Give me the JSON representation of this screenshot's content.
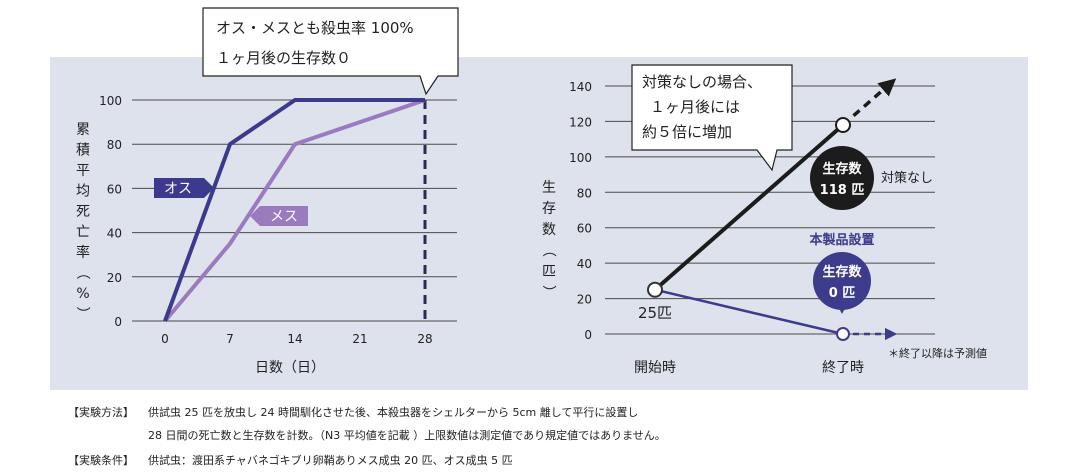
{
  "colors": {
    "panel_bg": "#dde2ec",
    "male": "#3b3a8e",
    "female": "#9a7bc0",
    "no_treatment": "#1c1c1c",
    "product": "#3d3b8c",
    "grid": "#4a4a4a"
  },
  "callouts": {
    "left": {
      "line1": "オス・メスとも殺虫率 100%",
      "line2": "１ヶ月後の生存数０"
    },
    "right": {
      "line1": "対策なしの場合、",
      "line2": "１ヶ月後には",
      "line3": "約５倍に増加"
    }
  },
  "chart_data": [
    {
      "type": "line",
      "xlabel": "日数（日）",
      "ylabel": "累積平均死亡率（%）",
      "x": [
        0,
        7,
        14,
        28
      ],
      "xlim": [
        0,
        28
      ],
      "ylim": [
        0,
        100
      ],
      "xticks": [
        "0",
        "7",
        "14",
        "21",
        "28"
      ],
      "yticks": [
        "0",
        "20",
        "40",
        "60",
        "80",
        "100"
      ],
      "series": [
        {
          "name": "オス",
          "values": [
            0,
            80,
            100,
            100
          ],
          "color": "#3b3a8e"
        },
        {
          "name": "メス",
          "values": [
            0,
            35,
            80,
            100
          ],
          "color": "#9a7bc0"
        }
      ],
      "end_marker_x": 28,
      "grid": true
    },
    {
      "type": "line",
      "ylabel": "生存数（匹）",
      "categories": [
        "開始時",
        "終了時"
      ],
      "ylim": [
        0,
        140
      ],
      "yticks": [
        "0",
        "20",
        "40",
        "60",
        "80",
        "100",
        "120",
        "140"
      ],
      "series": [
        {
          "name": "対策なし",
          "values": [
            25,
            118
          ],
          "color": "#1c1c1c"
        },
        {
          "name": "本製品設置",
          "values": [
            25,
            0
          ],
          "color": "#3d3b8c"
        }
      ],
      "start_label": "25匹",
      "badges": [
        {
          "line1": "生存数",
          "line2": "118 匹",
          "side_label": "対策なし"
        },
        {
          "line1": "生存数",
          "line2": "0 匹",
          "top_label": "本製品設置"
        }
      ],
      "footnote": "＊終了以降は予測値",
      "grid": true
    }
  ],
  "notes": [
    {
      "label": "【実験方法】",
      "text": "供試虫 25 匹を放虫し 24 時間馴化させた後、本殺虫器をシェルターから 5cm 離して平行に設置し"
    },
    {
      "label": "",
      "text": "28 日間の死亡数と生存数を計数。（N3 平均値を記載 ）上限数値は測定値であり規定値ではありません。"
    },
    {
      "label": "【実験条件】",
      "text": "供試虫：渡田系チャバネゴキブリ卵鞘ありメス成虫 20 匹、オス成虫 5 匹"
    }
  ]
}
